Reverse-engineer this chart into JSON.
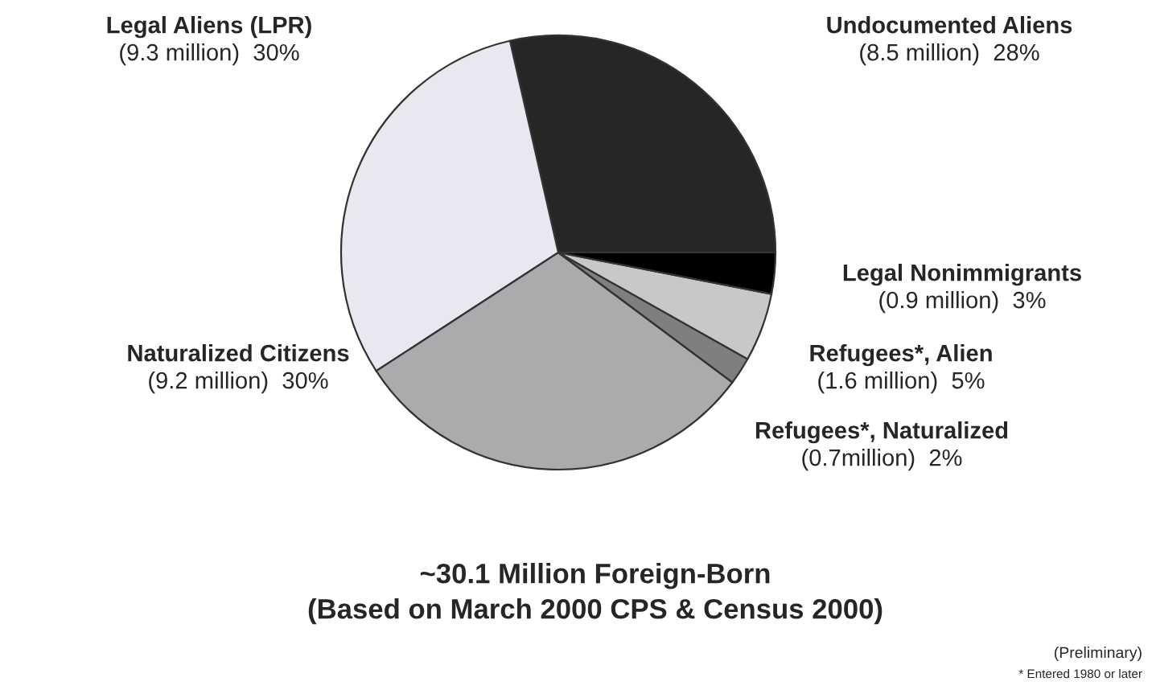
{
  "chart_data": {
    "type": "pie",
    "title": "~30.1 Million Foreign-Born",
    "subtitle": "(Based on March 2000 CPS & Census 2000)",
    "categories": [
      "Undocumented Aliens",
      "Legal Aliens (LPR)",
      "Naturalized Citizens",
      "Refugees*, Naturalized",
      "Refugees*, Alien",
      "Legal Nonimmigrants"
    ],
    "values": [
      28,
      30,
      30,
      2,
      5,
      3
    ],
    "value_labels": [
      "(8.5 million)  28%",
      "(9.3 million)  30%",
      "(9.2 million)  30%",
      "(0.7million)  2%",
      "(1.6 million)  5%",
      "(0.9 million)  3%"
    ],
    "colors": [
      "#262626",
      "#e8e8f0",
      "#ababad",
      "#7f7f7f",
      "#c8c8c8",
      "#000000"
    ],
    "annotations": [
      "(Preliminary)",
      "* Entered 1980 or later"
    ],
    "legend": false
  }
}
